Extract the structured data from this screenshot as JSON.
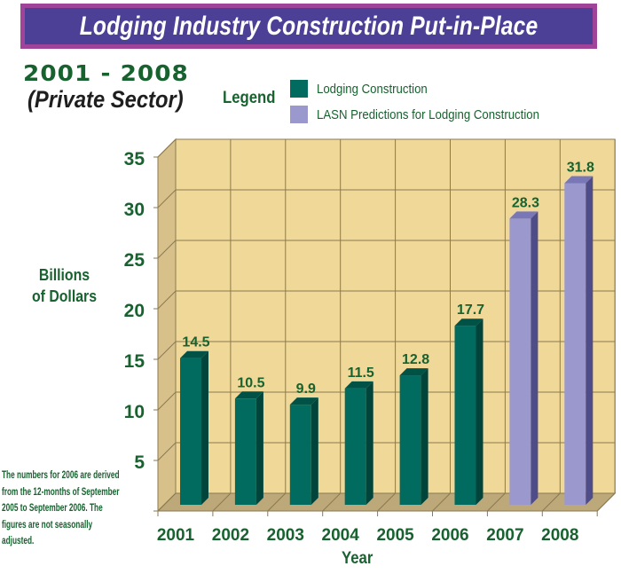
{
  "banner": {
    "title": "Lodging Industry Construction Put-in-Place"
  },
  "subtitle": {
    "range": "2001 - 2008",
    "sector": "(Private Sector)"
  },
  "legend": {
    "title": "Legend",
    "items": [
      {
        "label": "Lodging Construction",
        "color": "#006b5e"
      },
      {
        "label": "LASN Predictions for Lodging Construction",
        "color": "#9a98cc"
      }
    ]
  },
  "note": "The numbers for 2006 are derived from the 12-months of September 2005 to September 2006. The figures are not seasonally adjusted.",
  "colors": {
    "wall": "#f0d898",
    "side_wall": "#d8c08a",
    "floor": "#bca878",
    "grid": "#8a7a50",
    "text": "#17622f"
  },
  "chart_data": {
    "type": "bar",
    "title": "Lodging Industry Construction Put-in-Place",
    "subtitle": "2001 - 2008 (Private Sector)",
    "xlabel": "Year",
    "ylabel": "Billions of Dollars",
    "ylim": [
      0,
      35
    ],
    "yticks": [
      "5",
      "10",
      "15",
      "20",
      "25",
      "30",
      "35"
    ],
    "grid": true,
    "legend_position": "top",
    "categories": [
      "2001",
      "2002",
      "2003",
      "2004",
      "2005",
      "2006",
      "2007",
      "2008"
    ],
    "series": [
      {
        "name": "Lodging Construction",
        "values": [
          14.5,
          10.5,
          9.9,
          11.5,
          12.8,
          17.7,
          null,
          null
        ]
      },
      {
        "name": "LASN Predictions for Lodging Construction",
        "values": [
          null,
          null,
          null,
          null,
          null,
          null,
          28.3,
          31.8
        ]
      }
    ],
    "data_labels": [
      "14.5",
      "10.5",
      "9.9",
      "11.5",
      "12.8",
      "17.7",
      "28.3",
      "31.8"
    ]
  }
}
